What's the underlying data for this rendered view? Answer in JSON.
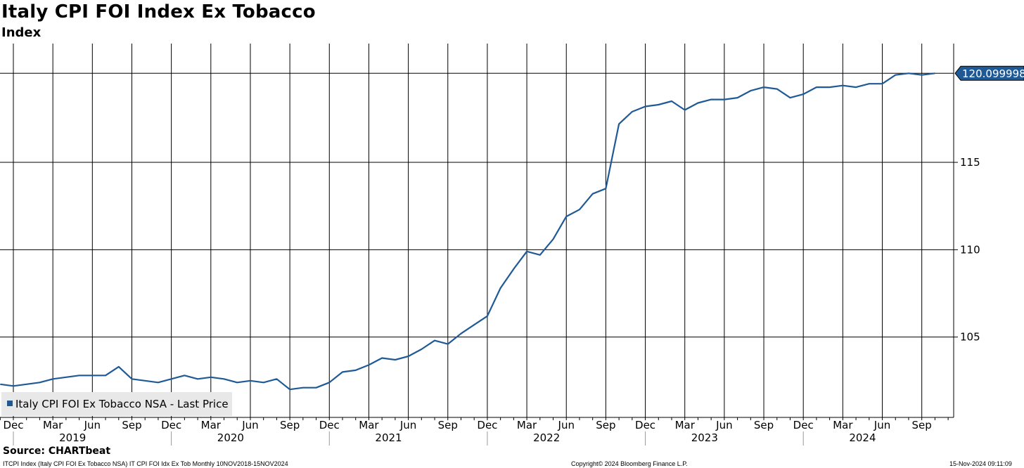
{
  "header": {
    "title": "Italy CPI FOI Index Ex Tobacco",
    "subtitle": "Index"
  },
  "footer": {
    "source": "Source: CHARTbeat",
    "left": "ITCPI Index (Italy CPI FOI Ex Tobacco NSA) IT CPI FOI Idx Ex Tob  Monthly 10NOV2018-15NOV2024",
    "center": "Copyright© 2024 Bloomberg Finance L.P.",
    "right": "15-Nov-2024 09:11:09"
  },
  "chart_data": {
    "type": "line",
    "title": "Italy CPI FOI Index Ex Tobacco",
    "ylabel": "Index",
    "ylim": [
      100.4,
      121.8
    ],
    "y_ticks": [
      105,
      110,
      115
    ],
    "grid": true,
    "legend": {
      "position": "bottom-left",
      "entries": [
        "Italy CPI FOI Ex Tobacco NSA - Last Price"
      ]
    },
    "last_value_label": "120.099998",
    "last_value_line": 120.1,
    "x_month_labels": [
      "Dec",
      "Mar",
      "Jun",
      "Sep",
      "Dec",
      "Mar",
      "Jun",
      "Sep",
      "Dec",
      "Mar",
      "Jun",
      "Sep",
      "Dec",
      "Mar",
      "Jun",
      "Sep",
      "Dec",
      "Mar",
      "Jun",
      "Sep",
      "Dec",
      "Mar",
      "Jun",
      "Sep"
    ],
    "x_year_labels": [
      "2019",
      "2020",
      "2021",
      "2022",
      "2023",
      "2024"
    ],
    "series": [
      {
        "name": "Italy CPI FOI Ex Tobacco NSA - Last Price",
        "color": "#1f5a96",
        "start": "2018-11",
        "values": [
          102.3,
          102.2,
          102.3,
          102.4,
          102.6,
          102.7,
          102.8,
          102.8,
          102.8,
          103.3,
          102.6,
          102.5,
          102.4,
          102.6,
          102.8,
          102.6,
          102.7,
          102.6,
          102.4,
          102.5,
          102.4,
          102.6,
          102.0,
          102.1,
          102.1,
          102.4,
          103.0,
          103.1,
          103.4,
          103.8,
          103.7,
          103.9,
          104.3,
          104.8,
          104.6,
          105.2,
          105.7,
          106.2,
          107.8,
          108.9,
          109.9,
          109.7,
          110.6,
          111.9,
          112.3,
          113.2,
          113.5,
          117.2,
          117.9,
          118.2,
          118.3,
          118.5,
          118.0,
          118.4,
          118.6,
          118.6,
          118.7,
          119.1,
          119.3,
          119.2,
          118.7,
          118.9,
          119.3,
          119.3,
          119.4,
          119.3,
          119.5,
          119.5,
          120.0,
          120.1,
          120.0,
          120.1
        ]
      }
    ]
  }
}
